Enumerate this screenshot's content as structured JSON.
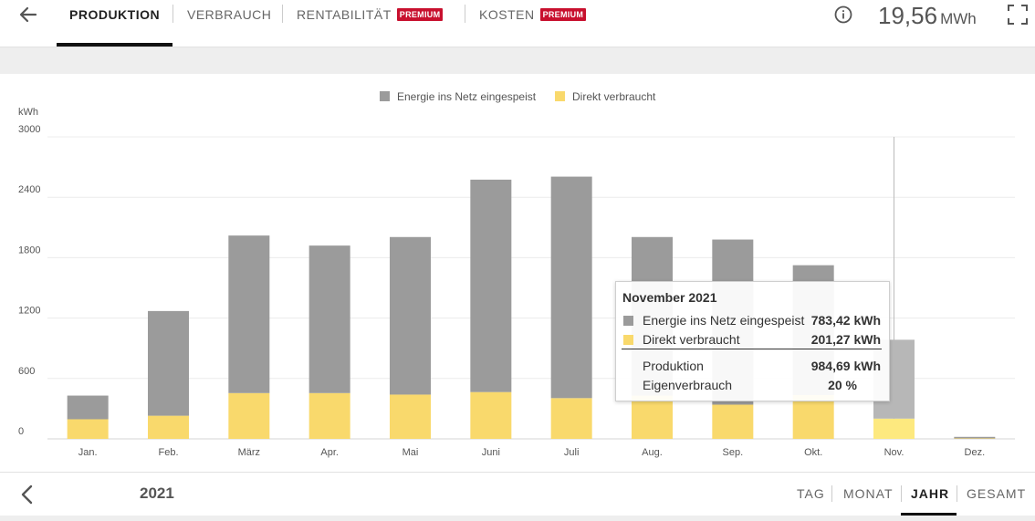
{
  "header": {
    "tabs": [
      {
        "label": "PRODUKTION",
        "active": true,
        "premium": false
      },
      {
        "label": "VERBRAUCH",
        "active": false,
        "premium": false
      },
      {
        "label": "RENTABILITÄT",
        "active": false,
        "premium": true
      },
      {
        "label": "KOSTEN",
        "active": false,
        "premium": true
      }
    ],
    "premium_badge": "PREMIUM",
    "total_value": "19,56",
    "total_unit": "MWh",
    "icons": {
      "back": "arrow-left-icon",
      "info": "info-icon",
      "fullscreen": "fullscreen-icon"
    }
  },
  "chart_data": {
    "type": "bar",
    "stacked": true,
    "ylabel": "kWh",
    "ylim": [
      0,
      3000
    ],
    "yticks": [
      "0",
      "600",
      "1200",
      "1800",
      "2400",
      "3000"
    ],
    "grid": true,
    "legend_position": "top-center",
    "categories": [
      "Jan.",
      "Feb.",
      "März",
      "Apr.",
      "Mai",
      "Juni",
      "Juli",
      "Aug.",
      "Sep.",
      "Okt.",
      "Nov.",
      "Dez."
    ],
    "series": [
      {
        "name": "Direkt verbraucht",
        "color": "#f9d96c",
        "highlight_color": "#fde97f",
        "values": [
          195,
          230,
          455,
          455,
          440,
          465,
          405,
          430,
          340,
          435,
          201.27,
          5
        ]
      },
      {
        "name": "Energie ins Netz eingespeist",
        "color": "#9b9b9b",
        "highlight_color": "#b7b7b7",
        "values": [
          235,
          1040,
          1565,
          1465,
          1565,
          2110,
          2200,
          1575,
          1640,
          1290,
          783.42,
          15
        ]
      }
    ],
    "highlighted_index": 10
  },
  "tooltip": {
    "title": "November 2021",
    "rows": [
      {
        "color": "#9b9b9b",
        "label": "Energie ins Netz eingespeist",
        "value": "783,42  kWh"
      },
      {
        "color": "#f9d96c",
        "label": "Direkt verbraucht",
        "value": "201,27  kWh"
      }
    ],
    "summary": [
      {
        "label": "Produktion",
        "value": "984,69  kWh"
      },
      {
        "label": "Eigenverbrauch",
        "value": "20  %"
      }
    ]
  },
  "footer": {
    "year": "2021",
    "periods": [
      {
        "label": "TAG",
        "active": false
      },
      {
        "label": "MONAT",
        "active": false
      },
      {
        "label": "JAHR",
        "active": true
      },
      {
        "label": "GESAMT",
        "active": false
      }
    ],
    "icons": {
      "prev": "chevron-left-icon"
    }
  }
}
